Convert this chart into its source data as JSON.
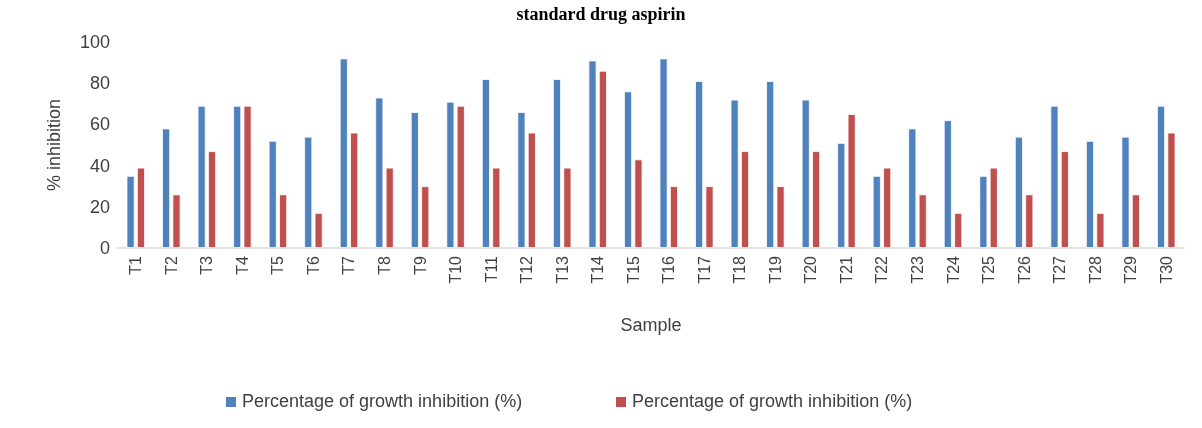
{
  "chart_data": {
    "type": "bar",
    "title": "standard drug aspirin",
    "xlabel": "Sample",
    "ylabel": "% inhibition",
    "categories": [
      "T1",
      "T2",
      "T3",
      "T4",
      "T5",
      "T6",
      "T7",
      "T8",
      "T9",
      "T10",
      "T11",
      "T12",
      "T13",
      "T14",
      "T15",
      "T16",
      "T17",
      "T18",
      "T19",
      "T20",
      "T21",
      "T22",
      "T23",
      "T24",
      "T25",
      "T26",
      "T27",
      "T28",
      "T29",
      "T30"
    ],
    "series": [
      {
        "name": "Percentage of growth inhibition (%)",
        "color": "#4f81bd",
        "values": [
          35,
          58,
          69,
          69,
          52,
          54,
          92,
          73,
          66,
          71,
          82,
          66,
          82,
          91,
          76,
          92,
          81,
          72,
          81,
          72,
          51,
          35,
          58,
          62,
          35,
          54,
          69,
          52,
          54,
          69
        ]
      },
      {
        "name": "Percentage of growth inhibition (%)",
        "color": "#c0504d",
        "values": [
          39,
          26,
          47,
          69,
          26,
          17,
          56,
          39,
          30,
          69,
          39,
          56,
          39,
          86,
          43,
          30,
          30,
          47,
          30,
          47,
          65,
          39,
          26,
          17,
          39,
          26,
          47,
          17,
          26,
          56
        ]
      }
    ],
    "ylim": [
      0,
      100
    ],
    "yticks": [
      0,
      20,
      40,
      60,
      80,
      100
    ],
    "grid": false,
    "legend": "bottom"
  }
}
